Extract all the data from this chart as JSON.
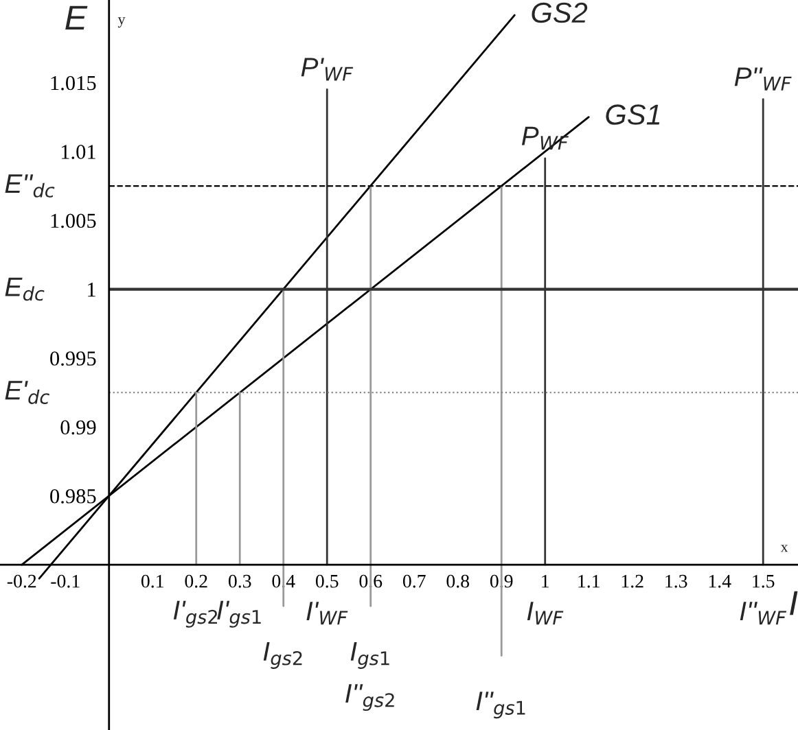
{
  "chart_data": {
    "type": "line",
    "xlabel": "I",
    "ylabel": "E",
    "xlim": [
      -0.25,
      1.58
    ],
    "ylim": [
      0.968,
      1.021
    ],
    "xticks": [
      -0.2,
      -0.1,
      0.1,
      0.2,
      0.3,
      0.4,
      0.5,
      0.6,
      0.7,
      0.8,
      0.9,
      1,
      1.1,
      1.2,
      1.3,
      1.4,
      1.5
    ],
    "yticks": [
      0.985,
      0.99,
      0.995,
      1,
      1.005,
      1.01,
      1.015
    ],
    "grid": false,
    "legend": false,
    "marker": "none",
    "line_style": "solid",
    "series": [
      {
        "name": "GS1",
        "color": "#000000",
        "x": [
          -0.2,
          1.1
        ],
        "values": [
          0.98,
          1.0125
        ]
      },
      {
        "name": "GS2",
        "color": "#000000",
        "x": [
          -0.16,
          0.93
        ],
        "values": [
          0.979,
          1.0199
        ]
      },
      {
        "color": "#999999",
        "x": [
          0.2,
          0.2
        ],
        "values": [
          0.98,
          0.9925
        ]
      },
      {
        "color": "#999999",
        "x": [
          0.3,
          0.3
        ],
        "values": [
          0.98,
          0.9925
        ]
      },
      {
        "color": "#999999",
        "x": [
          0.4,
          0.4
        ],
        "values": [
          0.977,
          1
        ]
      },
      {
        "color": "#999999",
        "x": [
          0.6,
          0.6
        ],
        "values": [
          0.977,
          1.0075
        ]
      },
      {
        "color": "#999999",
        "x": [
          0.9,
          0.9
        ],
        "values": [
          0.9734,
          1.0075
        ]
      },
      {
        "color": "#333333",
        "x": [
          0.5,
          0.5
        ],
        "values": [
          0.98,
          1.0145
        ]
      },
      {
        "color": "#333333",
        "x": [
          1,
          1
        ],
        "values": [
          0.98,
          1.0095
        ]
      },
      {
        "color": "#333333",
        "x": [
          1.5,
          1.5
        ],
        "values": [
          0.98,
          1.0138
        ]
      }
    ],
    "ref_lines": [
      {
        "axis": "y",
        "value": 1,
        "label": "E$_{dc}$",
        "color": "#333333",
        "line_style": "solid"
      },
      {
        "axis": "y",
        "value": 1.0075,
        "label": "E''$_{dc}$",
        "color": "#000000",
        "line_style": "dashed"
      },
      {
        "axis": "y",
        "value": 0.9925,
        "label": "E'$_{dc}$",
        "color": "#888888",
        "line_style": "dotted"
      }
    ],
    "annotations": [
      {
        "text": "P'$_{WF}$",
        "x": 0.5,
        "y": 1.0145
      },
      {
        "text": "P$_{WF}$",
        "x": 1,
        "y": 1.0095
      },
      {
        "text": "P''$_{WF}$",
        "x": 1.5,
        "y": 1.0138
      },
      {
        "text": "I'$_{gs2}$",
        "x": 0.2,
        "y": 0.98
      },
      {
        "text": "I'$_{gs1}$",
        "x": 0.3,
        "y": 0.98
      },
      {
        "text": "I'$_{WF}$",
        "x": 0.5,
        "y": 0.98
      },
      {
        "text": "I$_{gs2}$",
        "x": 0.4,
        "y": 0.977
      },
      {
        "text": "I$_{gs1}$",
        "x": 0.6,
        "y": 0.977
      },
      {
        "text": "I''$_{gs2}$",
        "x": 0.6,
        "y": 0.977
      },
      {
        "text": "I''$_{gs1}$",
        "x": 0.9,
        "y": 0.9734
      },
      {
        "text": "I$_{WF}$",
        "x": 1,
        "y": 0.98
      },
      {
        "text": "I''$_{WF}$",
        "x": 1.5,
        "y": 0.98
      },
      "y",
      "x"
    ]
  }
}
